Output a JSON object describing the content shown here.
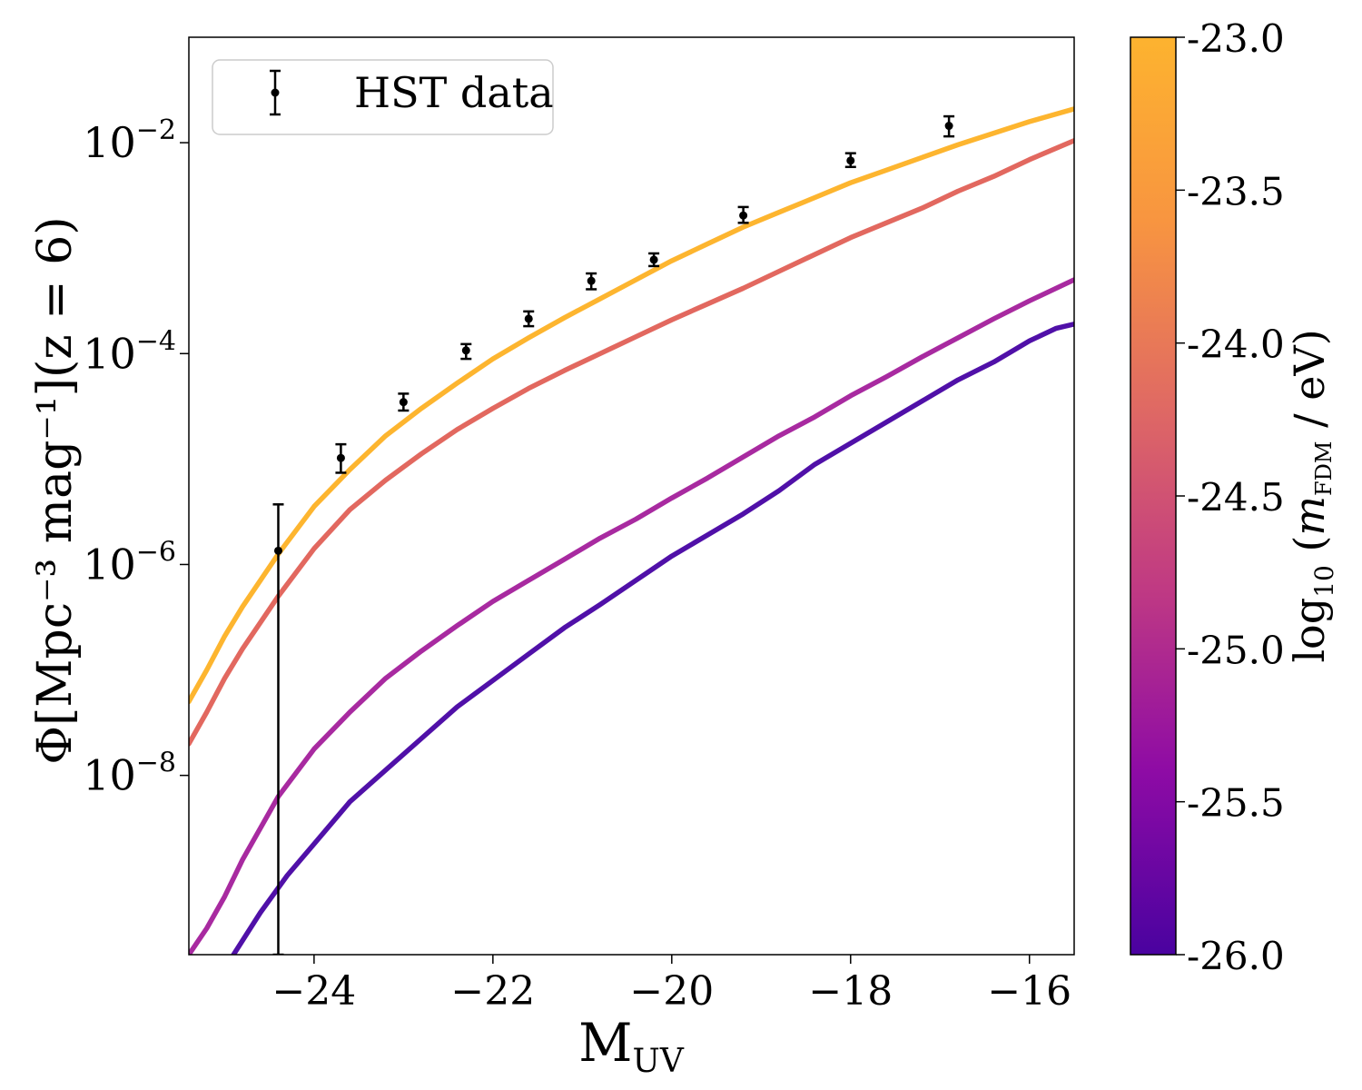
{
  "chart_data": {
    "type": "line",
    "xlabel_main": "M",
    "xlabel_sub": "UV",
    "ylabel": "Φ[Mpc⁻³ mag⁻¹](z = 6)",
    "xlim": [
      -25.4,
      -15.5
    ],
    "ylim_log10": [
      -9.7,
      -1.0
    ],
    "y_scale": "log",
    "grid": false,
    "legend": {
      "placement": "top-left",
      "entries": [
        "HST data"
      ]
    },
    "x_ticks": [
      -24,
      -22,
      -20,
      -18,
      -16
    ],
    "x_tick_labels": [
      "−24",
      "−22",
      "−20",
      "−18",
      "−16"
    ],
    "y_ticks_log10": [
      -8,
      -6,
      -4,
      -2
    ],
    "y_tick_labels": [
      {
        "base": "10",
        "exp": "−8"
      },
      {
        "base": "10",
        "exp": "−6"
      },
      {
        "base": "10",
        "exp": "−4"
      },
      {
        "base": "10",
        "exp": "−2"
      }
    ],
    "colorbar": {
      "label_prefix": "log",
      "label_sub": "10",
      "label_num": "m",
      "label_num_sub": "FDM",
      "label_den": "eV",
      "min": -26.0,
      "max": -23.0,
      "ticks": [
        -26.0,
        -25.5,
        -25.0,
        -24.5,
        -24.0,
        -23.5,
        -23.0
      ],
      "tick_labels": [
        "-26.0",
        "-25.5",
        "-25.0",
        "-24.5",
        "-24.0",
        "-23.5",
        "-23.0"
      ],
      "colors": [
        "#4a02a0",
        "#8e0ba5",
        "#c03a83",
        "#e06a63",
        "#f89540",
        "#fdb32f"
      ]
    },
    "series": [
      {
        "log10_m": -26.0,
        "color": "#5010a8",
        "x": [
          -24.9,
          -24.6,
          -24.3,
          -24.0,
          -23.6,
          -23.2,
          -22.8,
          -22.4,
          -22.0,
          -21.6,
          -21.2,
          -20.8,
          -20.4,
          -20.0,
          -19.6,
          -19.2,
          -18.8,
          -18.4,
          -18.0,
          -17.6,
          -17.2,
          -16.8,
          -16.4,
          -16.0,
          -15.7,
          -15.5
        ],
        "log10_y": [
          -9.7,
          -9.3,
          -8.95,
          -8.65,
          -8.25,
          -7.95,
          -7.65,
          -7.35,
          -7.1,
          -6.85,
          -6.6,
          -6.38,
          -6.15,
          -5.92,
          -5.72,
          -5.52,
          -5.3,
          -5.05,
          -4.85,
          -4.65,
          -4.45,
          -4.25,
          -4.08,
          -3.88,
          -3.76,
          -3.72
        ]
      },
      {
        "log10_m": -25.0,
        "color": "#a82aa0",
        "x": [
          -25.4,
          -25.2,
          -25.0,
          -24.8,
          -24.6,
          -24.4,
          -24.0,
          -23.6,
          -23.2,
          -22.8,
          -22.4,
          -22.0,
          -21.6,
          -21.2,
          -20.8,
          -20.4,
          -20.0,
          -19.6,
          -19.2,
          -18.8,
          -18.4,
          -18.0,
          -17.6,
          -17.2,
          -16.8,
          -16.4,
          -16.0,
          -15.5
        ],
        "log10_y": [
          -9.7,
          -9.45,
          -9.15,
          -8.8,
          -8.5,
          -8.2,
          -7.75,
          -7.4,
          -7.08,
          -6.82,
          -6.58,
          -6.35,
          -6.15,
          -5.95,
          -5.75,
          -5.57,
          -5.37,
          -5.18,
          -4.98,
          -4.78,
          -4.6,
          -4.4,
          -4.22,
          -4.03,
          -3.85,
          -3.67,
          -3.5,
          -3.3
        ]
      },
      {
        "log10_m": -24.0,
        "color": "#e2685f",
        "x": [
          -25.4,
          -25.2,
          -25.0,
          -24.8,
          -24.6,
          -24.4,
          -24.0,
          -23.6,
          -23.2,
          -22.8,
          -22.4,
          -22.0,
          -21.6,
          -21.2,
          -20.8,
          -20.4,
          -20.0,
          -19.6,
          -19.2,
          -18.8,
          -18.4,
          -18.0,
          -17.6,
          -17.2,
          -16.8,
          -16.4,
          -16.0,
          -15.5
        ],
        "log10_y": [
          -7.7,
          -7.4,
          -7.08,
          -6.8,
          -6.55,
          -6.3,
          -5.85,
          -5.48,
          -5.2,
          -4.95,
          -4.72,
          -4.52,
          -4.33,
          -4.16,
          -4.0,
          -3.84,
          -3.68,
          -3.53,
          -3.38,
          -3.22,
          -3.06,
          -2.9,
          -2.76,
          -2.62,
          -2.46,
          -2.32,
          -2.16,
          -1.98
        ]
      },
      {
        "log10_m": -23.0,
        "color": "#fdb52f",
        "x": [
          -25.4,
          -25.2,
          -25.0,
          -24.8,
          -24.6,
          -24.4,
          -24.0,
          -23.6,
          -23.2,
          -22.8,
          -22.4,
          -22.0,
          -21.6,
          -21.2,
          -20.8,
          -20.4,
          -20.0,
          -19.6,
          -19.2,
          -18.8,
          -18.4,
          -18.0,
          -17.6,
          -17.2,
          -16.8,
          -16.4,
          -16.0,
          -15.5
        ],
        "log10_y": [
          -7.3,
          -7.0,
          -6.68,
          -6.4,
          -6.15,
          -5.9,
          -5.45,
          -5.1,
          -4.78,
          -4.52,
          -4.28,
          -4.05,
          -3.85,
          -3.66,
          -3.48,
          -3.3,
          -3.12,
          -2.96,
          -2.8,
          -2.66,
          -2.52,
          -2.38,
          -2.26,
          -2.14,
          -2.02,
          -1.91,
          -1.8,
          -1.68
        ]
      }
    ],
    "data_points": {
      "name": "HST data",
      "x": [
        -24.4,
        -23.7,
        -23.0,
        -22.3,
        -21.6,
        -20.9,
        -20.2,
        -19.2,
        -18.0,
        -16.9
      ],
      "log10_y": [
        -5.87,
        -4.99,
        -4.46,
        -3.97,
        -3.67,
        -3.31,
        -3.11,
        -2.69,
        -2.17,
        -1.84
      ],
      "log10_y_low": [
        -9.7,
        -5.13,
        -4.54,
        -4.05,
        -3.74,
        -3.39,
        -3.17,
        -2.76,
        -2.23,
        -1.94
      ],
      "log10_y_high": [
        -5.43,
        -4.86,
        -4.38,
        -3.91,
        -3.6,
        -3.24,
        -3.05,
        -2.61,
        -2.1,
        -1.75
      ]
    }
  }
}
